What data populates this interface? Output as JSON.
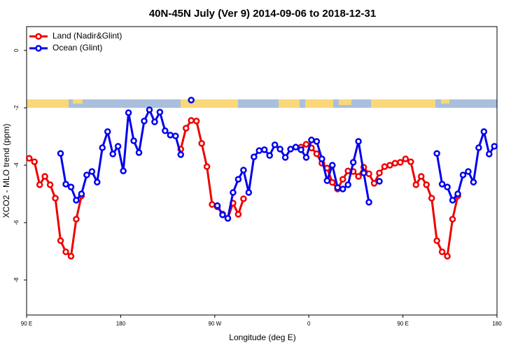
{
  "chart_data": {
    "type": "line",
    "title": "40N-45N July (Ver 9)   2014-09-06 to 2018-12-31",
    "xlabel": "Longitude (deg E)",
    "ylabel": "XCO2 - MLO trend (ppm)",
    "legend": "top-left",
    "x": [
      92.5,
      97.5,
      102.5,
      107.5,
      112.5,
      117.5,
      122.5,
      127.5,
      132.5,
      137.5,
      142.5,
      147.5,
      152.5,
      157.5,
      162.5,
      167.5,
      172.5,
      177.5,
      182.5,
      187.5,
      192.5,
      197.5,
      202.5,
      207.5,
      212.5,
      217.5,
      222.5,
      227.5,
      232.5,
      237.5,
      242.5,
      247.5,
      252.5,
      257.5,
      262.5,
      267.5,
      272.5,
      277.5,
      282.5,
      287.5,
      292.5,
      297.5,
      302.5,
      307.5,
      312.5,
      317.5,
      322.5,
      327.5,
      332.5,
      337.5,
      342.5,
      347.5,
      352.5,
      357.5,
      362.5,
      367.5,
      372.5,
      377.5,
      382.5,
      387.5,
      392.5,
      397.5,
      402.5,
      407.5,
      412.5,
      417.5,
      422.5,
      427.5,
      432.5,
      437.5,
      442.5,
      447.5,
      452.5,
      457.5,
      462.5,
      467.5,
      472.5,
      477.5,
      482.5,
      487.5,
      492.5,
      497.5,
      502.5,
      507.5,
      512.5,
      517.5,
      522.5,
      527.5,
      532.5,
      537.5
    ],
    "series": [
      {
        "name": "Land (Nadir&Glint)",
        "color": "#ee0000",
        "values": [
          -3.76,
          -3.88,
          -4.68,
          -4.39,
          -4.68,
          -5.15,
          -6.63,
          -7.02,
          -7.17,
          -5.88,
          -5.07,
          null,
          null,
          null,
          null,
          null,
          null,
          null,
          null,
          null,
          null,
          null,
          null,
          null,
          null,
          null,
          null,
          null,
          null,
          -3.44,
          -2.71,
          -2.44,
          -2.46,
          -3.24,
          -4.05,
          -5.37,
          -5.45,
          -5.7,
          -5.85,
          -5.32,
          -5.71,
          -5.17,
          null,
          null,
          null,
          null,
          null,
          null,
          null,
          null,
          null,
          null,
          -3.37,
          -3.27,
          -3.4,
          -3.6,
          -3.93,
          -4.1,
          -4.6,
          -4.83,
          -4.49,
          -4.2,
          -4.22,
          -4.39,
          -4.07,
          -4.3,
          -4.63,
          -4.27,
          -4.05,
          -4,
          -3.93,
          -3.9,
          -3.78,
          -3.88,
          -4.68,
          -4.39,
          -4.68,
          -5.15,
          -6.63,
          -7.02,
          -7.17,
          -5.88,
          -5.07,
          null,
          null,
          null,
          null,
          null,
          null,
          null
        ]
      },
      {
        "name": "Ocean (Glint)",
        "color": "#0000ee",
        "values": [
          null,
          null,
          null,
          null,
          null,
          null,
          -3.59,
          -4.66,
          -4.76,
          -5.22,
          -5,
          -4.34,
          -4.22,
          -4.59,
          -3.39,
          -2.83,
          -3.61,
          -3.34,
          -4.2,
          -2.17,
          -3.15,
          -3.56,
          -2.46,
          -2.07,
          -2.49,
          -2.15,
          -2.8,
          -2.95,
          -2.98,
          -3.63,
          null,
          -1.73,
          null,
          null,
          null,
          null,
          -5.41,
          -5.73,
          -5.85,
          -4.95,
          -4.49,
          -4.17,
          -4.95,
          -3.71,
          -3.49,
          -3.46,
          -3.66,
          -3.29,
          -3.44,
          -3.73,
          -3.44,
          -3.37,
          -3.46,
          -3.73,
          -3.12,
          -3.17,
          -3.78,
          -4.54,
          -4,
          -4.78,
          -4.83,
          -4.68,
          -3.9,
          -3.17,
          -4.27,
          -5.29,
          null,
          -4.56,
          null,
          null,
          null,
          null,
          null,
          null,
          null,
          null,
          null,
          null,
          -3.59,
          -4.66,
          -4.76,
          -5.22,
          -5,
          -4.34,
          -4.22,
          -4.59,
          -3.39,
          -2.83,
          -3.61,
          -3.34
        ]
      }
    ],
    "xlim": [
      90,
      540
    ],
    "xticks": [
      {
        "value": 90,
        "label": "90 E"
      },
      180,
      {
        "value": 270,
        "label": "90 W"
      },
      {
        "value": 360,
        "label": "0"
      },
      {
        "value": 450,
        "label": "90 E"
      },
      {
        "value": 540,
        "label": "180"
      }
    ],
    "ylim": [
      -9.22,
      0.83
    ],
    "yticks": [
      0,
      -2,
      -4,
      -6,
      -8
    ]
  }
}
